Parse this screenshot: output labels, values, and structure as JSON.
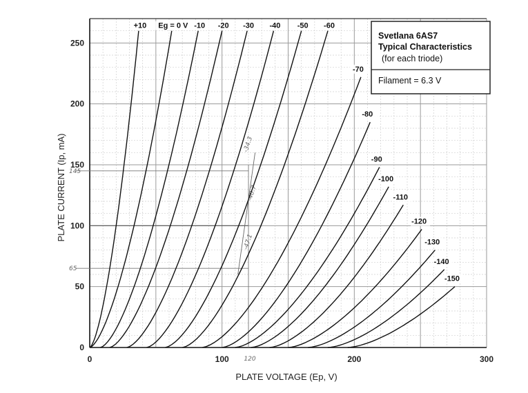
{
  "chart_data": {
    "type": "line",
    "title": "Svetlana 6AS7",
    "subtitle": "Typical Characteristics",
    "note": "(for each triode)",
    "filament": "Filament = 6.3 V",
    "xlabel": "PLATE VOLTAGE (Ep, V)",
    "ylabel": "PLATE CURRENT (Ip, mA)",
    "xlim": [
      0,
      300
    ],
    "ylim": [
      0,
      270
    ],
    "grid": true,
    "x_ticks": [
      {
        "value": 0,
        "label": "0"
      },
      {
        "value": 100,
        "label": "100"
      },
      {
        "value": 200,
        "label": "200"
      },
      {
        "value": 300,
        "label": "300"
      }
    ],
    "y_ticks": [
      {
        "value": 0,
        "label": "0"
      },
      {
        "value": 50,
        "label": "50"
      },
      {
        "value": 100,
        "label": "100"
      },
      {
        "value": 150,
        "label": "150"
      },
      {
        "value": 200,
        "label": "200"
      },
      {
        "value": 250,
        "label": "250"
      }
    ],
    "series": [
      {
        "name": "+10",
        "x0": 0,
        "x_top": 37,
        "y_top": 260,
        "label": "+10"
      },
      {
        "name": "Eg = 0 V",
        "x0": 0,
        "x_top": 62,
        "y_top": 260,
        "label": "Eg = 0 V"
      },
      {
        "name": "-10",
        "x0": 8,
        "x_top": 82,
        "y_top": 260,
        "label": "-10"
      },
      {
        "name": "-20",
        "x0": 15,
        "x_top": 100,
        "y_top": 260,
        "label": "-20"
      },
      {
        "name": "-30",
        "x0": 28,
        "x_top": 119,
        "y_top": 260,
        "label": "-30"
      },
      {
        "name": "-40",
        "x0": 43,
        "x_top": 139,
        "y_top": 260,
        "label": "-40"
      },
      {
        "name": "-50",
        "x0": 57,
        "x_top": 160,
        "y_top": 260,
        "label": "-50"
      },
      {
        "name": "-60",
        "x0": 70,
        "x_top": 180,
        "y_top": 260,
        "label": "-60"
      },
      {
        "name": "-70",
        "x0": 85,
        "x_top": 205,
        "y_top": 222,
        "label": "-70"
      },
      {
        "name": "-80",
        "x0": 100,
        "x_top": 212,
        "y_top": 185,
        "label": "-80"
      },
      {
        "name": "-90",
        "x0": 110,
        "x_top": 219,
        "y_top": 148,
        "label": "-90"
      },
      {
        "name": "-100",
        "x0": 122,
        "x_top": 226,
        "y_top": 132,
        "label": "-100"
      },
      {
        "name": "-110",
        "x0": 136,
        "x_top": 237,
        "y_top": 117,
        "label": "-110"
      },
      {
        "name": "-120",
        "x0": 150,
        "x_top": 251,
        "y_top": 97,
        "label": "-120"
      },
      {
        "name": "-130",
        "x0": 165,
        "x_top": 261,
        "y_top": 80,
        "label": "-130"
      },
      {
        "name": "-140",
        "x0": 180,
        "x_top": 268,
        "y_top": 64,
        "label": "-140"
      },
      {
        "name": "-150",
        "x0": 195,
        "x_top": 276,
        "y_top": 50,
        "label": "-150"
      }
    ],
    "annotations": {
      "y_marks": [
        {
          "value": 145,
          "label": "145"
        },
        {
          "value": 65,
          "label": "65"
        }
      ],
      "x_mark": {
        "value": 120,
        "label": "120"
      },
      "reference_line_y": 100,
      "slanted_notes": [
        "-34.3",
        "-40.7",
        "-47.1"
      ]
    }
  }
}
